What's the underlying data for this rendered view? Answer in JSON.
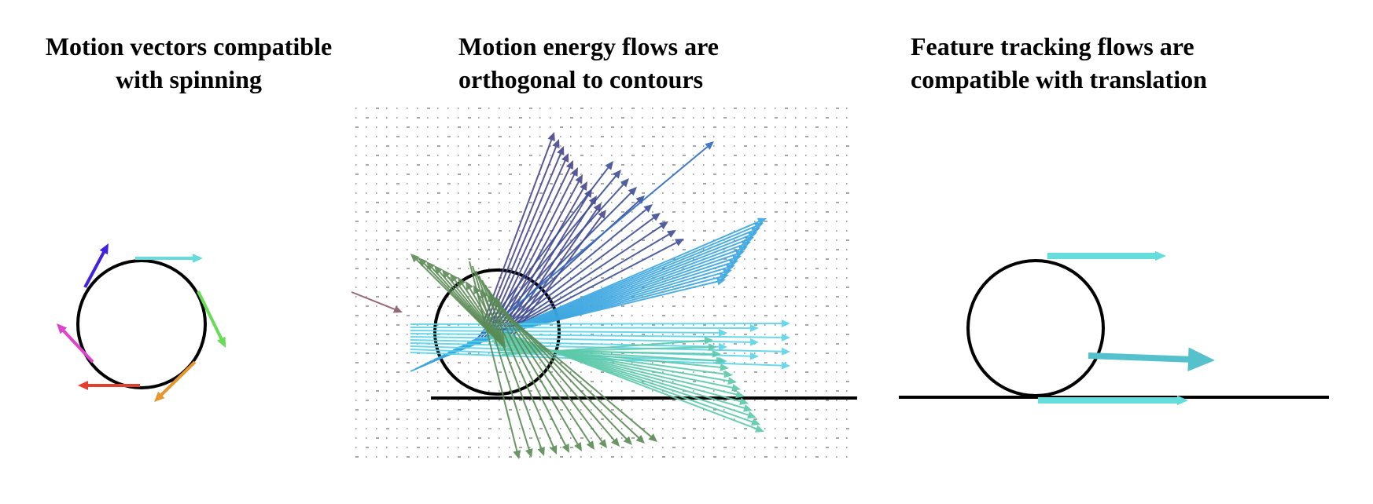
{
  "panels": [
    {
      "id": "left",
      "title": "Motion vectors compatible\nwith spinning"
    },
    {
      "id": "middle",
      "title": "Motion energy flows are\northogonal to contours"
    },
    {
      "id": "right",
      "title": "Feature tracking flows are\ncompatible with translation"
    }
  ],
  "colors": {
    "outline": "#000000",
    "spin_arrows": [
      "#4422dd",
      "#66dddd",
      "#66dd55",
      "#e8952e",
      "#e33e2e",
      "#dd44cc"
    ],
    "energy_palette": [
      "#48468e",
      "#3c4e95",
      "#2f6cc3",
      "#3aa6e0",
      "#5ad4e8",
      "#5cc9aa",
      "#5a8a55",
      "#8a5a6a"
    ],
    "tracking_arrow": "#66dddd",
    "tracking_arrow_center": "#55c1cc"
  }
}
